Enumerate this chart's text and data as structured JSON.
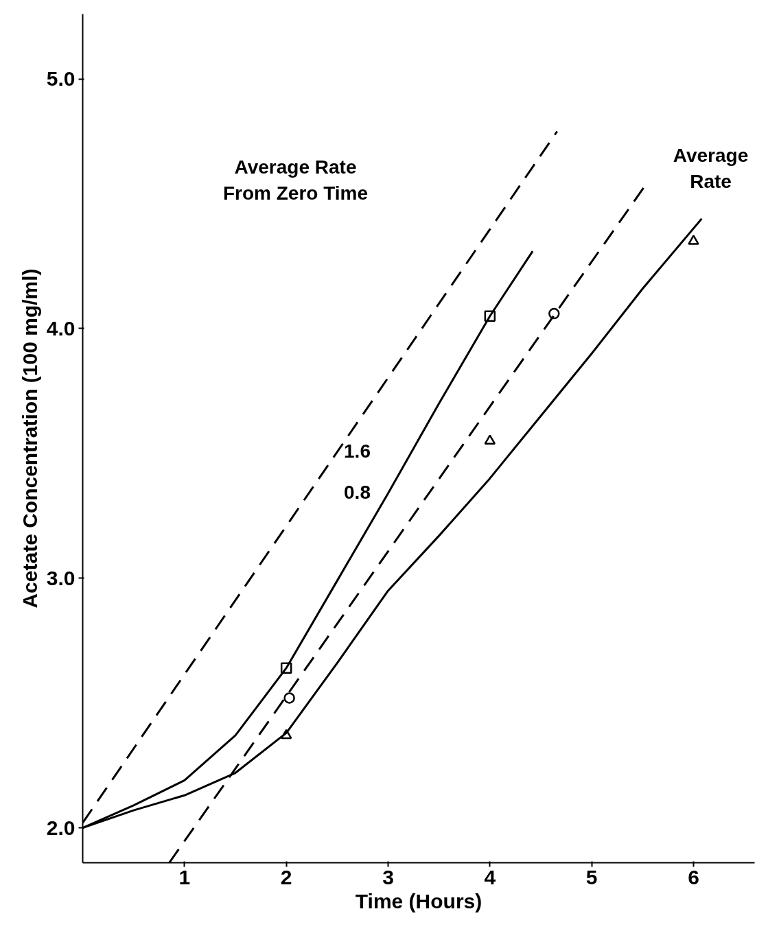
{
  "chart_data": {
    "type": "line",
    "xlabel": "Time (Hours)",
    "ylabel": "Acetate Concentration (100 mg/ml)",
    "xlim": [
      0,
      6.6
    ],
    "ylim": [
      1.86,
      5.26
    ],
    "xticks": [
      1,
      2,
      3,
      4,
      5,
      6
    ],
    "yticks": [
      {
        "value": 2,
        "label": "2.0"
      },
      {
        "value": 3,
        "label": "3.0"
      },
      {
        "value": 4,
        "label": "4.0"
      },
      {
        "value": 5,
        "label": "5.0"
      }
    ],
    "grid": false,
    "series": [
      {
        "type": "scatter",
        "marker": "square",
        "color": "#000000",
        "x": [
          2,
          4
        ],
        "values": [
          2.64,
          4.05
        ]
      },
      {
        "type": "scatter",
        "marker": "circle",
        "color": "#000000",
        "x": [
          2.03,
          4.63
        ],
        "values": [
          2.52,
          4.06
        ]
      },
      {
        "type": "scatter",
        "marker": "triangle",
        "color": "#000000",
        "x": [
          2,
          4,
          6
        ],
        "values": [
          2.37,
          3.55,
          4.35
        ]
      },
      {
        "line_style": "solid",
        "color": "#000000",
        "x": [
          0,
          0.5,
          1,
          1.5,
          2,
          2.5,
          3,
          3.5,
          4,
          4.42
        ],
        "values": [
          2.0,
          2.09,
          2.19,
          2.37,
          2.64,
          2.99,
          3.34,
          3.7,
          4.05,
          4.31
        ]
      },
      {
        "line_style": "solid",
        "color": "#000000",
        "x": [
          0,
          0.5,
          1,
          1.5,
          2,
          2.5,
          3,
          3.5,
          3.98,
          4.5,
          5,
          5.5,
          6.08
        ],
        "values": [
          2.0,
          2.07,
          2.13,
          2.22,
          2.38,
          2.66,
          2.95,
          3.17,
          3.39,
          3.65,
          3.9,
          4.16,
          4.44
        ]
      },
      {
        "line_style": "dashed",
        "color": "#000000",
        "x": [
          0,
          4.66
        ],
        "values": [
          2.02,
          4.79
        ]
      },
      {
        "line_style": "dashed",
        "color": "#000000",
        "x": [
          0.85,
          5.52
        ],
        "values": [
          1.86,
          4.57
        ]
      }
    ],
    "annotations": [
      "Average Rate\nFrom Zero Time",
      "Average\nRate",
      "1.6",
      "0.8"
    ]
  }
}
